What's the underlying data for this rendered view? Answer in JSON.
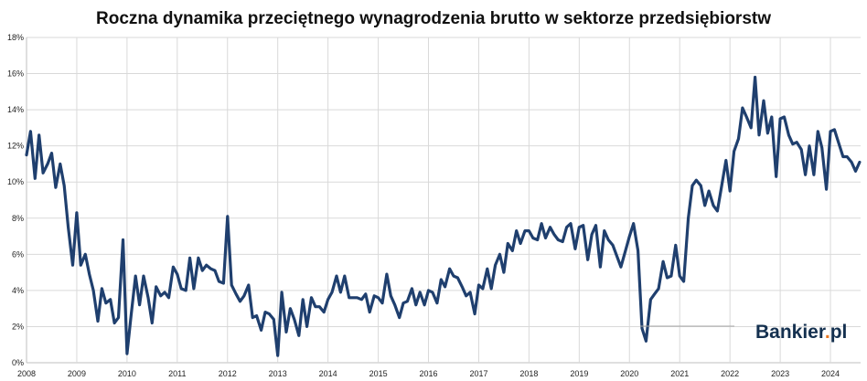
{
  "chart_data": {
    "type": "line",
    "title": "Roczna dynamika przeciętnego wynagrodzenia brutto w sektorze przedsiębiorstw",
    "xlabel": "",
    "ylabel": "",
    "ylim": [
      0,
      18
    ],
    "xlim": [
      2008,
      2024.6
    ],
    "y_ticks": [
      "0%",
      "2%",
      "4%",
      "6%",
      "8%",
      "10%",
      "12%",
      "14%",
      "16%",
      "18%"
    ],
    "x_ticks": [
      "2008",
      "2009",
      "2010",
      "2011",
      "2012",
      "2013",
      "2014",
      "2015",
      "2016",
      "2017",
      "2018",
      "2019",
      "2020",
      "2021",
      "2022",
      "2023",
      "2024"
    ],
    "grid": true,
    "legend": "none",
    "colors": {
      "series": "#1f3f6e",
      "grid": "#d9d9d9",
      "logo": "#14304f",
      "logo_dot": "#e87722"
    },
    "watermark": "Bankier.pl",
    "series": [
      {
        "x": [
          2008.0,
          2008.08,
          2008.17,
          2008.25,
          2008.33,
          2008.42,
          2008.5,
          2008.58,
          2008.67,
          2008.75,
          2008.83,
          2008.92,
          2009.0,
          2009.08,
          2009.17,
          2009.25,
          2009.33,
          2009.42,
          2009.5,
          2009.58,
          2009.67,
          2009.75,
          2009.83,
          2009.92,
          2010.0,
          2010.08,
          2010.17,
          2010.25,
          2010.33,
          2010.42,
          2010.5,
          2010.58,
          2010.67,
          2010.75,
          2010.83,
          2010.92,
          2011.0,
          2011.08,
          2011.17,
          2011.25,
          2011.33,
          2011.42,
          2011.5,
          2011.58,
          2011.67,
          2011.75,
          2011.83,
          2011.92,
          2012.0,
          2012.08,
          2012.17,
          2012.25,
          2012.33,
          2012.42,
          2012.5,
          2012.58,
          2012.67,
          2012.75,
          2012.83,
          2012.92,
          2013.0,
          2013.08,
          2013.17,
          2013.25,
          2013.33,
          2013.42,
          2013.5,
          2013.58,
          2013.67,
          2013.75,
          2013.83,
          2013.92,
          2014.0,
          2014.08,
          2014.17,
          2014.25,
          2014.33,
          2014.42,
          2014.5,
          2014.58,
          2014.67,
          2014.75,
          2014.83,
          2014.92,
          2015.0,
          2015.08,
          2015.17,
          2015.25,
          2015.33,
          2015.42,
          2015.5,
          2015.58,
          2015.67,
          2015.75,
          2015.83,
          2015.92,
          2016.0,
          2016.08,
          2016.17,
          2016.25,
          2016.33,
          2016.42,
          2016.5,
          2016.58,
          2016.67,
          2016.75,
          2016.83,
          2016.92,
          2017.0,
          2017.08,
          2017.17,
          2017.25,
          2017.33,
          2017.42,
          2017.5,
          2017.58,
          2017.67,
          2017.75,
          2017.83,
          2017.92,
          2018.0,
          2018.08,
          2018.17,
          2018.25,
          2018.33,
          2018.42,
          2018.5,
          2018.58,
          2018.67,
          2018.75,
          2018.83,
          2018.92,
          2019.0,
          2019.08,
          2019.17,
          2019.25,
          2019.33,
          2019.42,
          2019.5,
          2019.58,
          2019.67,
          2019.75,
          2019.83,
          2019.92,
          2020.0,
          2020.08,
          2020.17,
          2020.25,
          2020.33,
          2020.42,
          2020.5,
          2020.58,
          2020.67,
          2020.75,
          2020.83,
          2020.92,
          2021.0,
          2021.08,
          2021.17,
          2021.25,
          2021.33,
          2021.42,
          2021.5,
          2021.58,
          2021.67,
          2021.75,
          2021.83,
          2021.92,
          2022.0,
          2022.08,
          2022.17,
          2022.25,
          2022.33,
          2022.42,
          2022.5,
          2022.58,
          2022.67,
          2022.75,
          2022.83,
          2022.92,
          2023.0,
          2023.08,
          2023.17,
          2023.25,
          2023.33,
          2023.42,
          2023.5,
          2023.58,
          2023.67,
          2023.75,
          2023.83,
          2023.92,
          2024.0,
          2024.08,
          2024.17,
          2024.25,
          2024.33,
          2024.42,
          2024.5,
          2024.58
        ],
        "y": [
          11.5,
          12.8,
          10.2,
          12.6,
          10.5,
          11.0,
          11.6,
          9.7,
          11.0,
          9.8,
          7.5,
          5.4,
          8.3,
          5.4,
          6.0,
          4.9,
          4.0,
          2.3,
          4.1,
          3.3,
          3.5,
          2.2,
          2.5,
          6.8,
          0.5,
          2.6,
          4.8,
          3.2,
          4.8,
          3.6,
          2.2,
          4.2,
          3.7,
          3.9,
          3.6,
          5.3,
          4.9,
          4.1,
          4.0,
          5.8,
          4.1,
          5.8,
          5.1,
          5.4,
          5.2,
          5.1,
          4.5,
          4.4,
          8.1,
          4.3,
          3.8,
          3.4,
          3.7,
          4.3,
          2.5,
          2.6,
          1.8,
          2.8,
          2.7,
          2.4,
          0.4,
          3.9,
          1.7,
          3.0,
          2.4,
          1.5,
          3.5,
          2.0,
          3.6,
          3.1,
          3.1,
          2.8,
          3.5,
          3.9,
          4.8,
          3.9,
          4.8,
          3.6,
          3.6,
          3.6,
          3.5,
          3.8,
          2.8,
          3.7,
          3.6,
          3.3,
          4.9,
          3.7,
          3.2,
          2.5,
          3.3,
          3.4,
          4.1,
          3.2,
          3.9,
          3.2,
          4.0,
          3.9,
          3.3,
          4.6,
          4.2,
          5.2,
          4.8,
          4.7,
          4.2,
          3.7,
          3.9,
          2.7,
          4.3,
          4.1,
          5.2,
          4.1,
          5.4,
          6.0,
          5.0,
          6.6,
          6.2,
          7.3,
          6.6,
          7.3,
          7.3,
          6.9,
          6.8,
          7.7,
          6.9,
          7.5,
          7.1,
          6.8,
          6.7,
          7.5,
          7.7,
          6.3,
          7.5,
          7.6,
          5.7,
          7.1,
          7.6,
          5.3,
          7.3,
          6.8,
          6.5,
          5.9,
          5.3,
          6.2,
          7.0,
          7.7,
          6.2,
          1.9,
          1.2,
          3.5,
          3.8,
          4.1,
          5.6,
          4.7,
          4.8,
          6.5,
          4.8,
          4.5,
          8.0,
          9.8,
          10.1,
          9.8,
          8.7,
          9.5,
          8.7,
          8.4,
          9.7,
          11.2,
          9.5,
          11.7,
          12.4,
          14.1,
          13.6,
          13.0,
          15.8,
          12.6,
          14.5,
          12.7,
          13.6,
          10.3,
          13.5,
          13.6,
          12.6,
          12.1,
          12.2,
          11.8,
          10.4,
          12.0,
          10.4,
          12.8,
          11.9,
          9.6,
          12.8,
          12.9,
          12.1,
          11.4,
          11.4,
          11.1,
          10.6,
          11.1
        ]
      }
    ]
  }
}
